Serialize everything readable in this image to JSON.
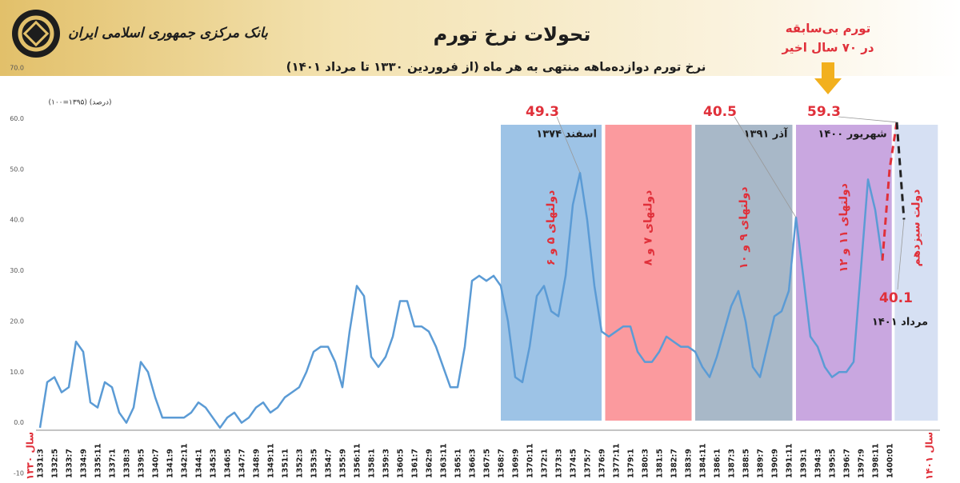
{
  "header": {
    "bank_name": "بانک مرکزی جمهوری اسلامی ایران"
  },
  "chart_data": {
    "type": "line",
    "title": "تحولات نرخ تورم",
    "subtitle": "نرخ تورم دوازده‌ماهه منتهی به هر ماه (از فروردین ۱۳۳۰ تا مرداد ۱۴۰۱)",
    "y_label": "(درصد) (۱۳۹۵=۱۰۰)",
    "callout": [
      "تورم بی‌سابقه",
      "در ۷۰ سال اخیر"
    ],
    "x_start_label": "سال ۱۳۳۰",
    "x_end_label": "سال ۱۴۰۱",
    "ylim": [
      -10,
      70
    ],
    "yticks": [
      -10,
      {
        "value": 0,
        "label": "0.0"
      },
      {
        "value": 10,
        "label": "10.0"
      },
      {
        "value": 20,
        "label": "20.0"
      },
      {
        "value": 30,
        "label": "30.0"
      },
      {
        "value": 40,
        "label": "40.0"
      },
      {
        "value": 50,
        "label": "50.0"
      },
      {
        "value": 60,
        "label": "60.0"
      },
      {
        "value": 70,
        "label": "70.0"
      }
    ],
    "grid": false,
    "categories": [
      "1331:3",
      null,
      "1332:5",
      null,
      "1333:7",
      null,
      "1334:9",
      null,
      "1335:11",
      null,
      "1337:1",
      null,
      "1338:3",
      null,
      "1339:5",
      null,
      "1340:7",
      null,
      "1341:9",
      null,
      "1342:11",
      null,
      "1344:1",
      null,
      "1345:3",
      null,
      "1346:5",
      null,
      "1347:7",
      null,
      "1348:9",
      null,
      "1349:11",
      null,
      "1351:1",
      null,
      "1352:3",
      null,
      "1353:5",
      null,
      "1354:7",
      null,
      "1355:9",
      null,
      "1356:11",
      null,
      "1358:1",
      null,
      "1359:3",
      null,
      "1360:5",
      null,
      "1361:7",
      null,
      "1362:9",
      null,
      "1363:11",
      null,
      "1365:1",
      null,
      "1366:3",
      null,
      "1367:5",
      null,
      "1368:7",
      null,
      "1369:9",
      null,
      "1370:11",
      null,
      "1372:1",
      null,
      "1373:3",
      null,
      "1374:5",
      null,
      "1375:7",
      null,
      "1376:9",
      null,
      "1377:11",
      null,
      "1379:1",
      null,
      "1380:3",
      null,
      "1381:5",
      null,
      "1382:7",
      null,
      "1383:9",
      null,
      "1384:11",
      null,
      "1386:1",
      null,
      "1387:3",
      null,
      "1388:5",
      null,
      "1389:7",
      null,
      "1390:9",
      null,
      "1391:11",
      null,
      "1393:1",
      null,
      "1394:3",
      null,
      "1395:5",
      null,
      "1396:7",
      null,
      "1397:9",
      null,
      "1398:11",
      null,
      "1400:01",
      null,
      null
    ],
    "series": [
      {
        "color": "#5b9bd5",
        "dash": false,
        "values": [
          -1,
          8,
          9,
          6,
          7,
          16,
          14,
          4,
          3,
          8,
          7,
          2,
          0,
          3,
          12,
          10,
          5,
          1,
          1,
          1,
          1,
          2,
          4,
          3,
          1,
          -1,
          1,
          2,
          0,
          1,
          3,
          4,
          2,
          3,
          5,
          6,
          7,
          10,
          14,
          15,
          15,
          12,
          7,
          18,
          27,
          25,
          13,
          11,
          13,
          17,
          24,
          24,
          19,
          19,
          18,
          15,
          11,
          7,
          7,
          15,
          28,
          29,
          28,
          29,
          27,
          20,
          9,
          8,
          15,
          25,
          27,
          22,
          21,
          29,
          43,
          49.3,
          40,
          27,
          18,
          17,
          18,
          19,
          19,
          14,
          12,
          12,
          14,
          17,
          16,
          15,
          15,
          14,
          11,
          9,
          13,
          18,
          23,
          26,
          20,
          11,
          9,
          15,
          21,
          22,
          26,
          40.5,
          29,
          17,
          15,
          11,
          9,
          10,
          10,
          12,
          30,
          48,
          42,
          32,
          null,
          null,
          null
        ]
      },
      {
        "color": "#e0303a",
        "dash": true,
        "values": [
          null,
          null,
          null,
          null,
          null,
          null,
          null,
          null,
          null,
          null,
          null,
          null,
          null,
          null,
          null,
          null,
          null,
          null,
          null,
          null,
          null,
          null,
          null,
          null,
          null,
          null,
          null,
          null,
          null,
          null,
          null,
          null,
          null,
          null,
          null,
          null,
          null,
          null,
          null,
          null,
          null,
          null,
          null,
          null,
          null,
          null,
          null,
          null,
          null,
          null,
          null,
          null,
          null,
          null,
          null,
          null,
          null,
          null,
          null,
          null,
          null,
          null,
          null,
          null,
          null,
          null,
          null,
          null,
          null,
          null,
          null,
          null,
          null,
          null,
          null,
          null,
          null,
          null,
          null,
          null,
          null,
          null,
          null,
          null,
          null,
          null,
          null,
          null,
          null,
          null,
          null,
          null,
          null,
          null,
          null,
          null,
          null,
          null,
          null,
          null,
          null,
          null,
          null,
          null,
          null,
          null,
          null,
          null,
          null,
          null,
          null,
          null,
          null,
          null,
          null,
          null,
          null,
          32,
          50,
          59.3,
          null
        ]
      },
      {
        "color": "#222222",
        "dash": true,
        "values": [
          null,
          null,
          null,
          null,
          null,
          null,
          null,
          null,
          null,
          null,
          null,
          null,
          null,
          null,
          null,
          null,
          null,
          null,
          null,
          null,
          null,
          null,
          null,
          null,
          null,
          null,
          null,
          null,
          null,
          null,
          null,
          null,
          null,
          null,
          null,
          null,
          null,
          null,
          null,
          null,
          null,
          null,
          null,
          null,
          null,
          null,
          null,
          null,
          null,
          null,
          null,
          null,
          null,
          null,
          null,
          null,
          null,
          null,
          null,
          null,
          null,
          null,
          null,
          null,
          null,
          null,
          null,
          null,
          null,
          null,
          null,
          null,
          null,
          null,
          null,
          null,
          null,
          null,
          null,
          null,
          null,
          null,
          null,
          null,
          null,
          null,
          null,
          null,
          null,
          null,
          null,
          null,
          null,
          null,
          null,
          null,
          null,
          null,
          null,
          null,
          null,
          null,
          null,
          null,
          null,
          null,
          null,
          null,
          null,
          null,
          null,
          null,
          null,
          null,
          null,
          null,
          null,
          null,
          null,
          59.3,
          40.1
        ]
      }
    ],
    "bands": [
      {
        "label": "دولتهای ۵ و ۶",
        "date_label": "اسفند ۱۳۷۴",
        "color": "#9dc3e6",
        "x_start": 64,
        "x_end": 78
      },
      {
        "label": "دولتهای ۷ و ۸",
        "color": "#fb9a9e",
        "x_start": 78.5,
        "x_end": 90.5
      },
      {
        "label": "دولتهای ۹ و ۱۰",
        "date_label": "آذر ۱۳۹۱",
        "color": "#a8b8c8",
        "x_start": 91,
        "x_end": 104.5
      },
      {
        "label": "دولتهای ۱۱ و ۱۲",
        "date_label": "شهریور ۱۴۰۰",
        "color": "#c9a7e0",
        "x_start": 105,
        "x_end": 118.3
      },
      {
        "label": "دولت سیزدهم",
        "color": "#d6e0f3",
        "x_start": 118.7,
        "x_end": 124.7
      }
    ],
    "end_date_label": "مرداد ۱۴۰۱"
  }
}
